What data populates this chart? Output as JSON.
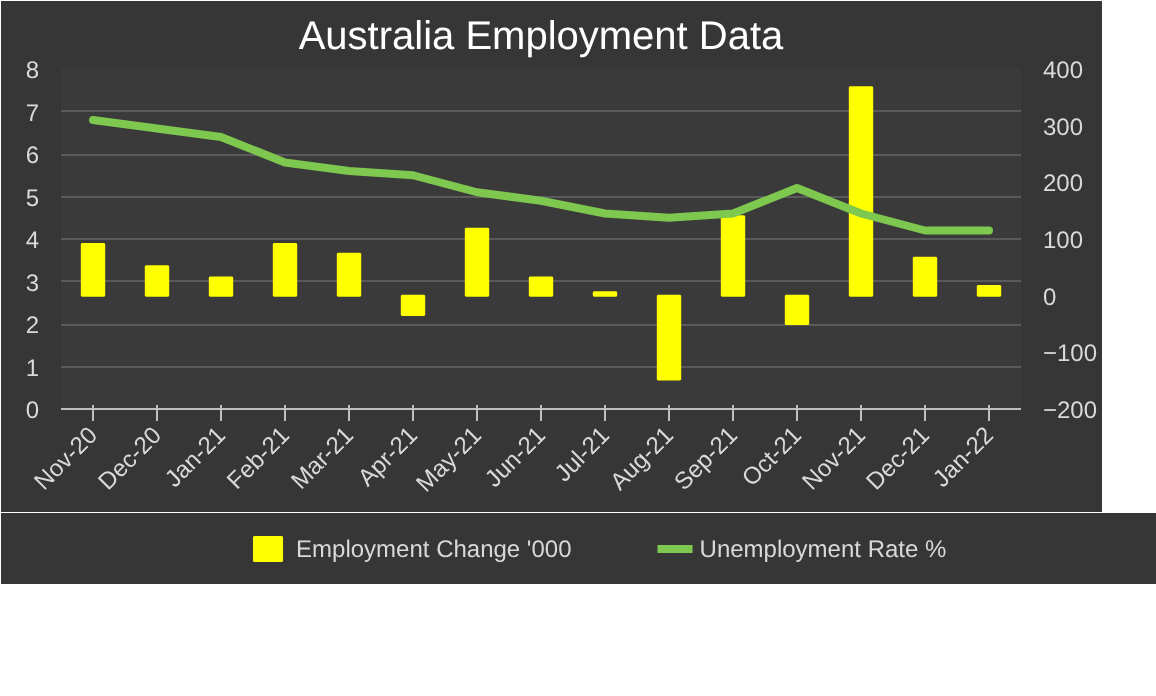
{
  "chart_data": {
    "type": "bar",
    "title": "Australia Employment Data",
    "categories": [
      "Nov-20",
      "Dec-20",
      "Jan-21",
      "Feb-21",
      "Mar-21",
      "Apr-21",
      "May-21",
      "Jun-21",
      "Jul-21",
      "Aug-21",
      "Sep-21",
      "Oct-21",
      "Nov-21",
      "Dec-21",
      "Jan-22"
    ],
    "series": [
      {
        "name": "Employment Change '000",
        "axis": "y2",
        "color": "#ffff00",
        "values": [
          91,
          52,
          32,
          91,
          74,
          -34,
          118,
          32,
          6,
          -148,
          140,
          -50,
          368,
          67,
          17
        ]
      },
      {
        "name": "Unemployment Rate %",
        "type": "line",
        "color": "#7ec850",
        "values": [
          6.8,
          6.6,
          6.4,
          5.8,
          5.6,
          5.5,
          5.1,
          4.9,
          4.6,
          4.5,
          4.6,
          5.2,
          4.6,
          4.2,
          4.2
        ]
      }
    ],
    "ylim": [
      0,
      8
    ],
    "yticks": [
      0,
      1,
      2,
      3,
      4,
      5,
      6,
      7,
      8
    ],
    "y2lim": [
      -200,
      400
    ],
    "y2ticks": [
      -200,
      -100,
      0,
      100,
      200,
      300,
      400
    ],
    "grid": "y",
    "legend": "bottom"
  }
}
